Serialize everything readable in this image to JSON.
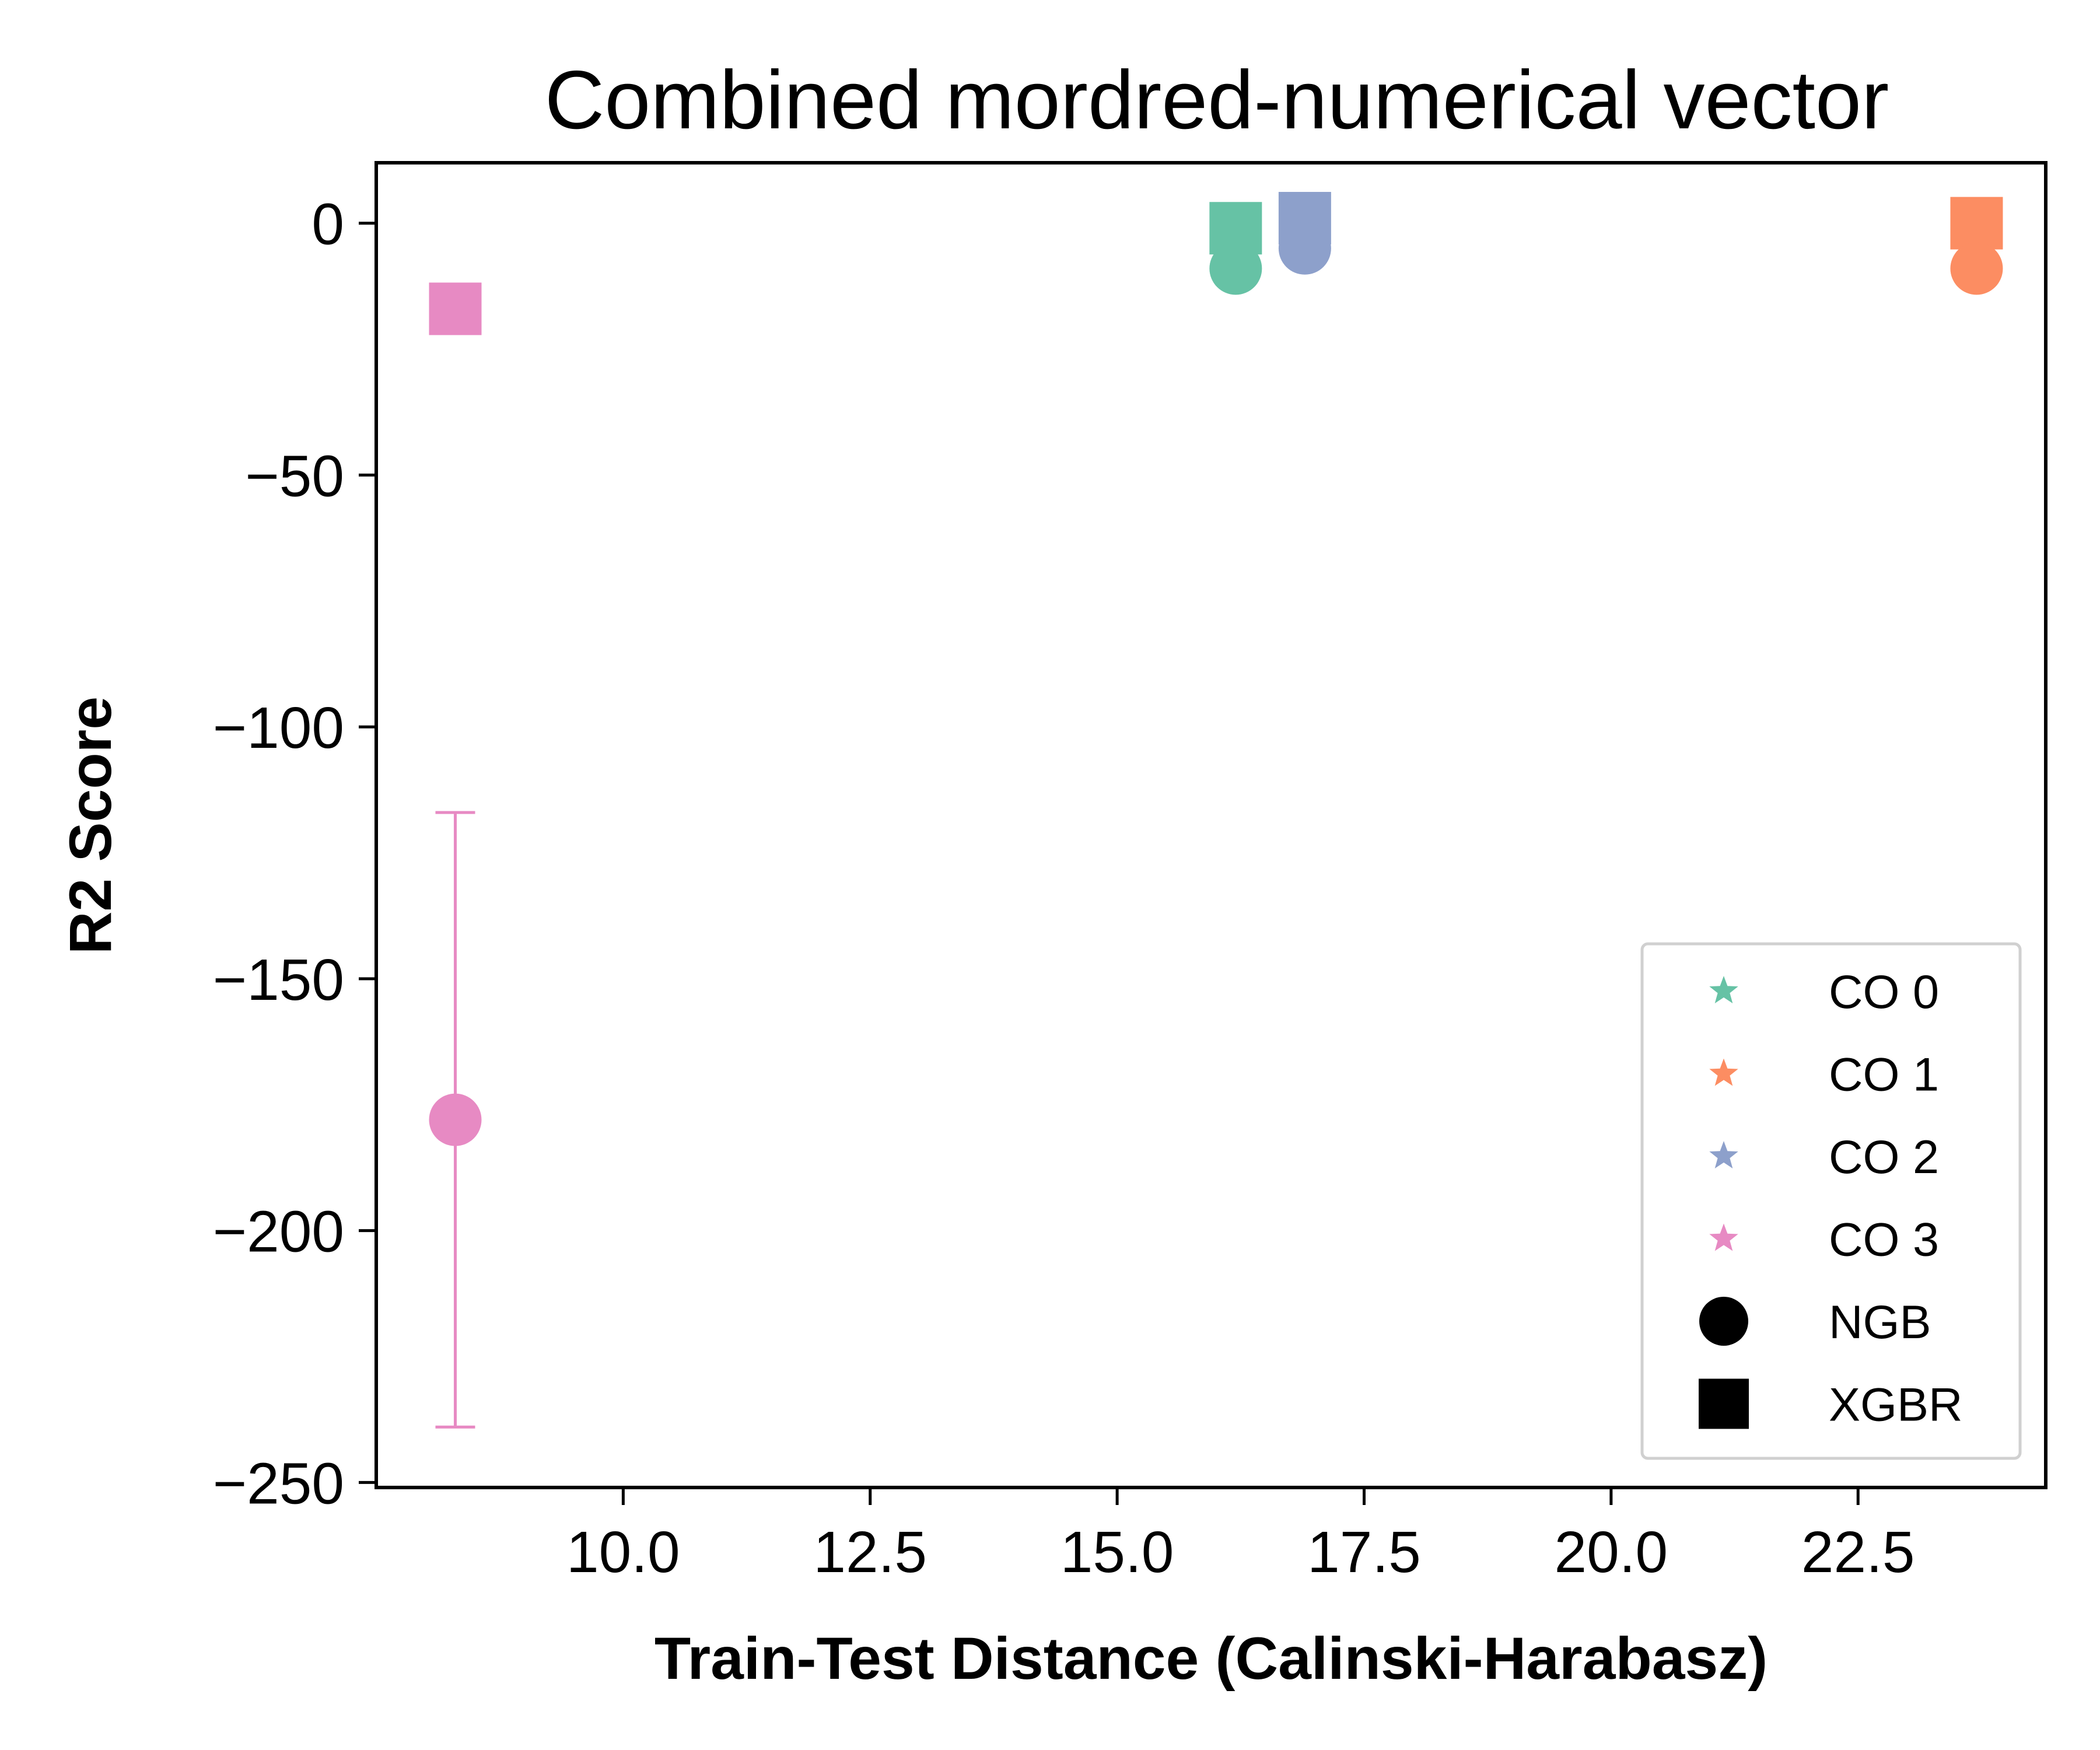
{
  "chart_data": {
    "type": "scatter",
    "title": "Combined mordred-numerical vector",
    "xlabel": "Train-Test Distance (Calinski-Harabasz)",
    "ylabel": "R2 Score",
    "xlim": [
      7.5,
      24.4
    ],
    "ylim": [
      -251,
      12
    ],
    "xticks": [
      {
        "value": 10.0,
        "label": "10.0"
      },
      {
        "value": 12.5,
        "label": "12.5"
      },
      {
        "value": 15.0,
        "label": "15.0"
      },
      {
        "value": 17.5,
        "label": "17.5"
      },
      {
        "value": 20.0,
        "label": "20.0"
      },
      {
        "value": 22.5,
        "label": "22.5"
      }
    ],
    "yticks": [
      {
        "value": 0,
        "label": "0"
      },
      {
        "value": -50,
        "label": "−50"
      },
      {
        "value": -100,
        "label": "−100"
      },
      {
        "value": -150,
        "label": "−150"
      },
      {
        "value": -200,
        "label": "−200"
      },
      {
        "value": -250,
        "label": "−250"
      }
    ],
    "grid": false,
    "legend_position": "lower-right",
    "groups": [
      {
        "name": "CO 0",
        "color": "#66c2a5"
      },
      {
        "name": "CO 1",
        "color": "#fc8d62"
      },
      {
        "name": "CO 2",
        "color": "#8da0cb"
      },
      {
        "name": "CO 3",
        "color": "#e78ac3"
      }
    ],
    "models": [
      {
        "name": "NGB",
        "marker": "circle"
      },
      {
        "name": "XGBR",
        "marker": "square"
      }
    ],
    "points": [
      {
        "group": "CO 0",
        "model": "XGBR",
        "x": 16.2,
        "y": -1,
        "err": 0
      },
      {
        "group": "CO 0",
        "model": "NGB",
        "x": 16.2,
        "y": -9,
        "err": 0
      },
      {
        "group": "CO 2",
        "model": "XGBR",
        "x": 16.9,
        "y": 1,
        "err": 0
      },
      {
        "group": "CO 2",
        "model": "NGB",
        "x": 16.9,
        "y": -5,
        "err": 0
      },
      {
        "group": "CO 1",
        "model": "XGBR",
        "x": 23.7,
        "y": 0,
        "err": 0
      },
      {
        "group": "CO 1",
        "model": "NGB",
        "x": 23.7,
        "y": -9,
        "err": 0
      },
      {
        "group": "CO 3",
        "model": "XGBR",
        "x": 8.3,
        "y": -17,
        "err": 0
      },
      {
        "group": "CO 3",
        "model": "NGB",
        "x": 8.3,
        "y": -178,
        "err": 61
      }
    ]
  }
}
